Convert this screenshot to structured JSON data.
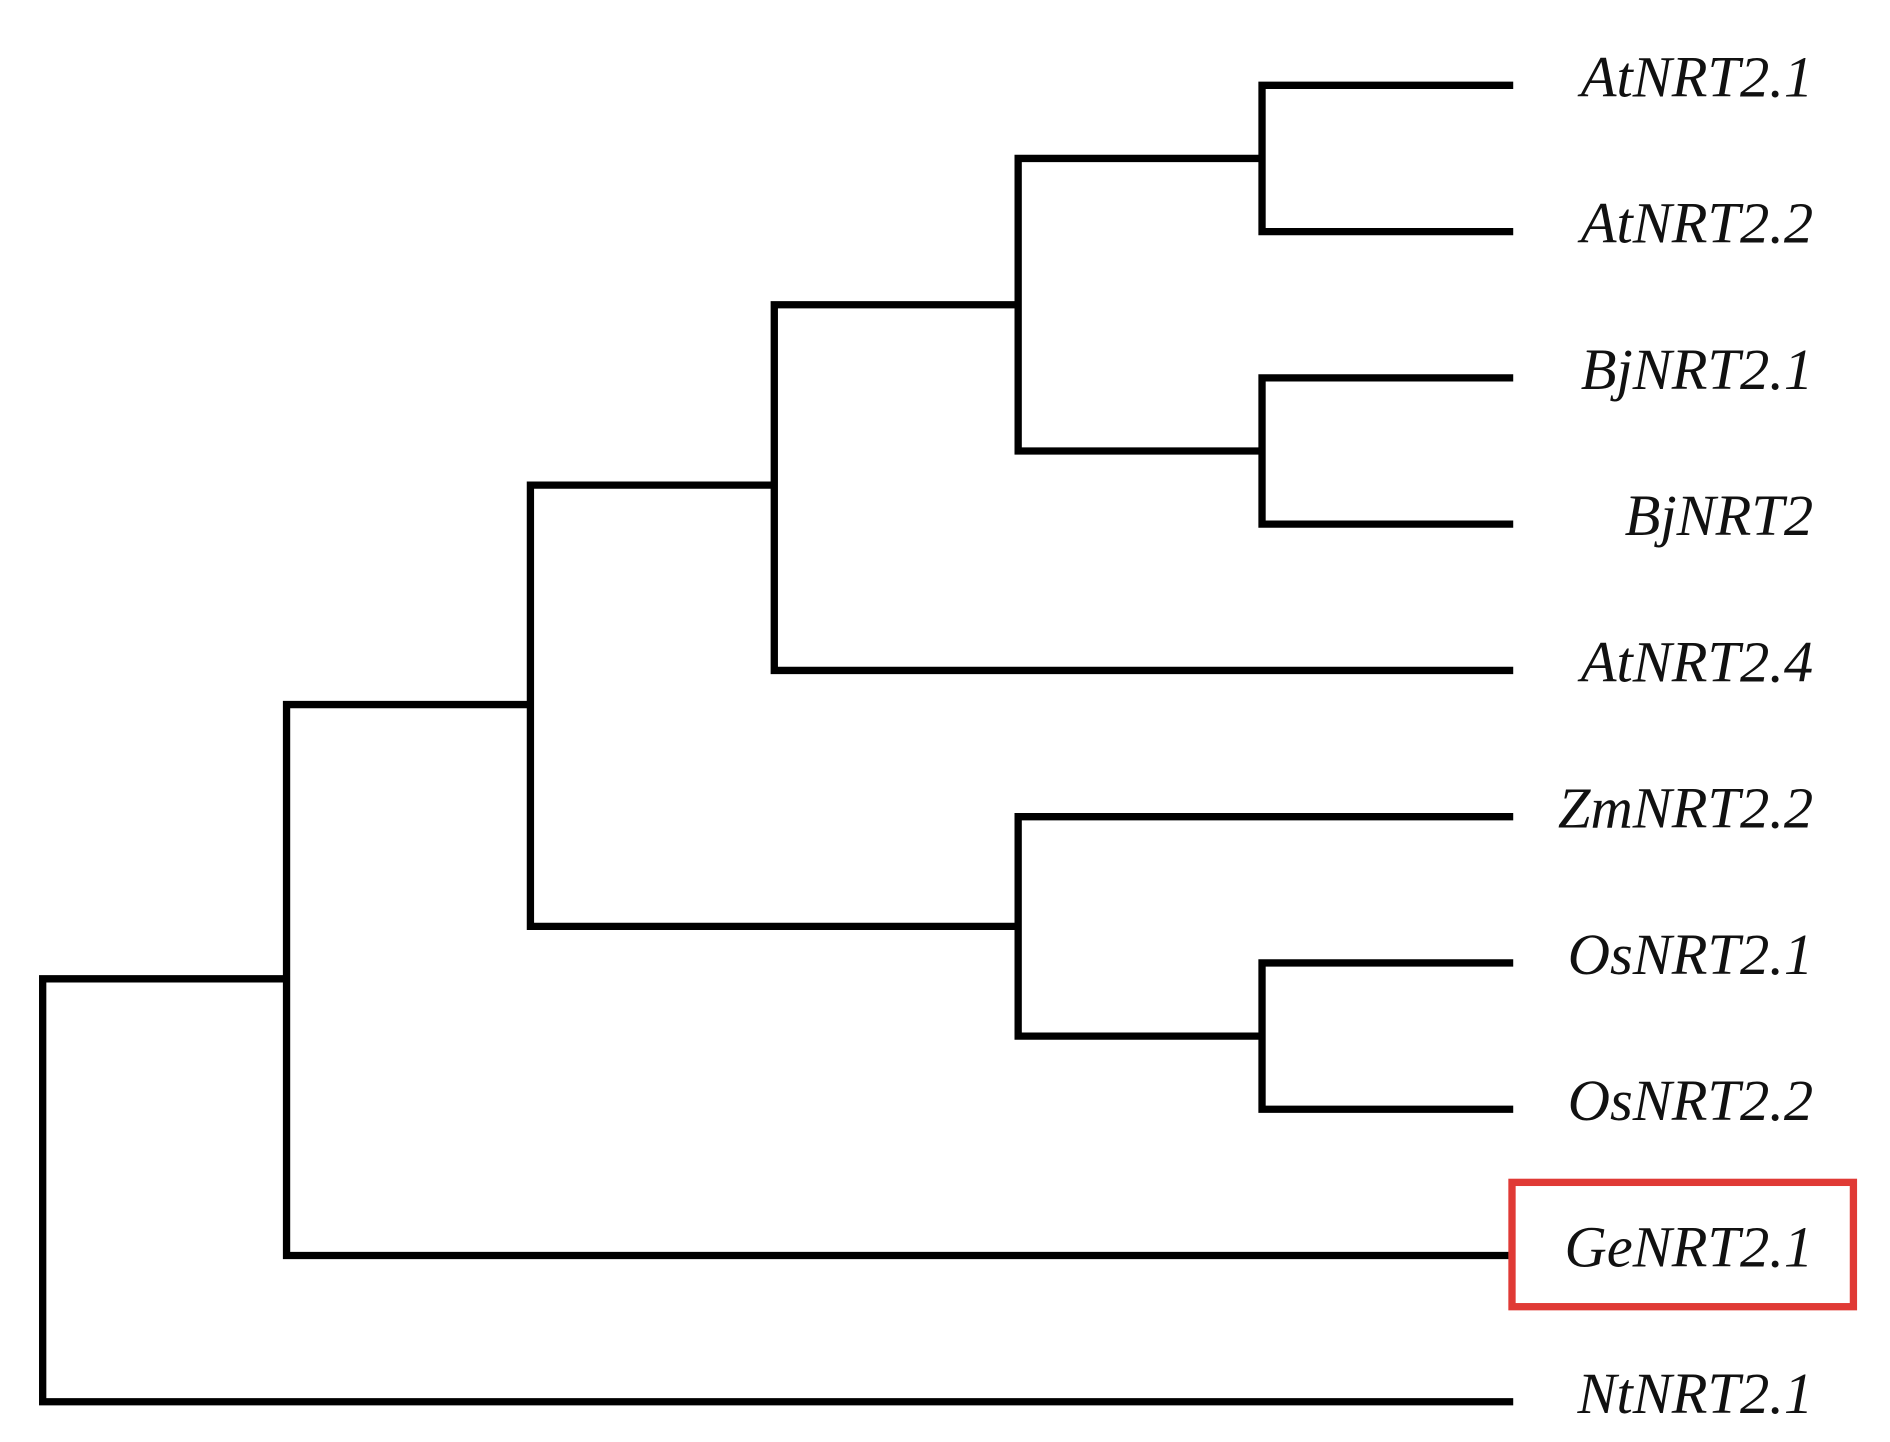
{
  "leaves": [
    "AtNRT2.1",
    "AtNRT2.2",
    "BjNRT2.1",
    "BjNRT2",
    "AtNRT2.4",
    "ZmNRT2.2",
    "OsNRT2.1",
    "OsNRT2.2",
    "GeNRT2.1",
    "NtNRT2.1"
  ]
}
